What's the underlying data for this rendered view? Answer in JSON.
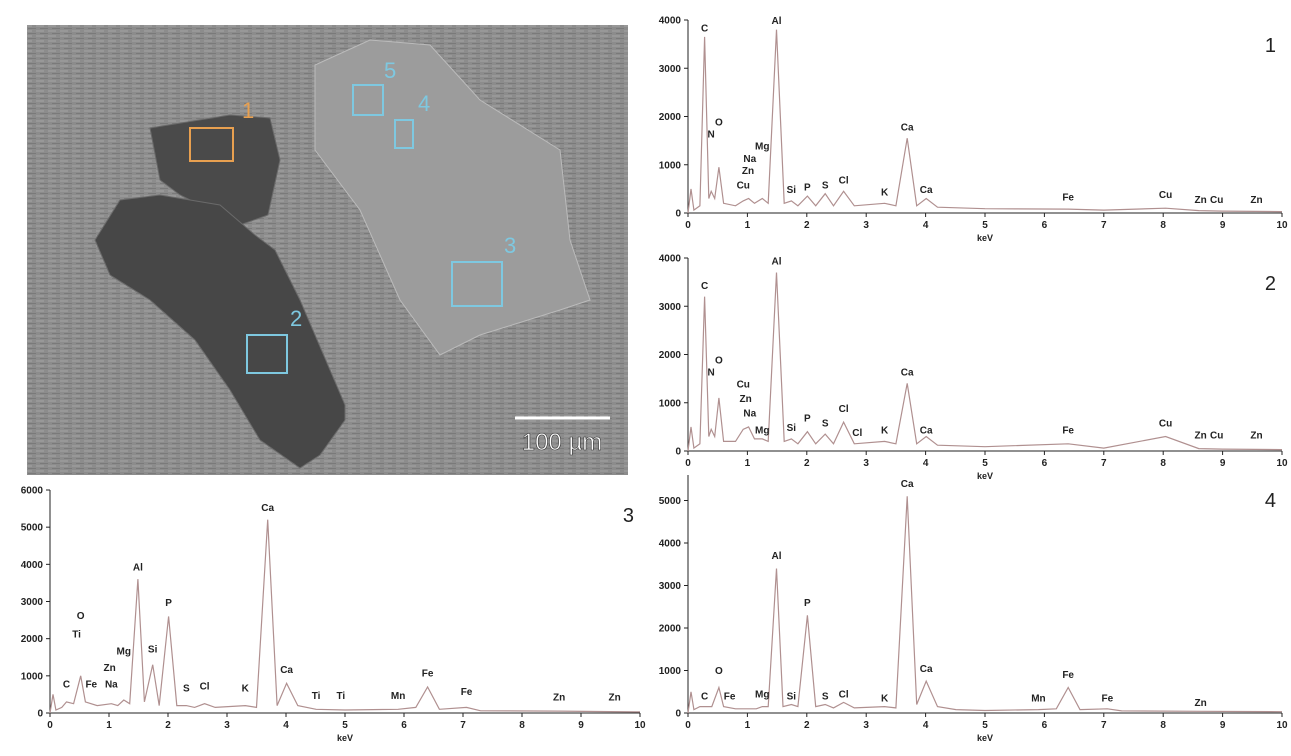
{
  "sem_image": {
    "region_labels": [
      "1",
      "2",
      "3",
      "4",
      "5"
    ],
    "scale_bar": "100 µm"
  },
  "chart_data": [
    {
      "type": "line",
      "panel": "1",
      "x_label": "keV",
      "color": "#b09090",
      "xlim": [
        0,
        10
      ],
      "ylim": [
        0,
        4000
      ],
      "xticks": [
        0,
        1,
        2,
        3,
        4,
        5,
        6,
        7,
        8,
        9,
        10
      ],
      "yticks": [
        0,
        1000,
        2000,
        3000,
        4000
      ],
      "x": [
        0,
        0.05,
        0.1,
        0.2,
        0.28,
        0.35,
        0.39,
        0.45,
        0.52,
        0.6,
        0.8,
        0.93,
        1.02,
        1.12,
        1.25,
        1.35,
        1.49,
        1.62,
        1.74,
        1.85,
        2.01,
        2.15,
        2.31,
        2.45,
        2.62,
        2.8,
        3.31,
        3.5,
        3.69,
        3.85,
        4.01,
        4.2,
        5,
        6.4,
        7,
        8.04,
        8.6,
        9,
        10
      ],
      "values": [
        0,
        500,
        60,
        150,
        3650,
        300,
        450,
        300,
        950,
        200,
        150,
        250,
        300,
        200,
        300,
        200,
        3800,
        200,
        250,
        150,
        350,
        150,
        400,
        150,
        450,
        150,
        200,
        150,
        1550,
        150,
        300,
        120,
        90,
        80,
        60,
        100,
        50,
        40,
        30
      ],
      "peaks": [
        {
          "element": "C",
          "energy": 0.28,
          "counts": 3700
        },
        {
          "element": "N",
          "energy": 0.39,
          "counts": 1500
        },
        {
          "element": "O",
          "energy": 0.52,
          "counts": 1750
        },
        {
          "element": "Na",
          "energy": 1.04,
          "counts": 1000
        },
        {
          "element": "Mg",
          "energy": 1.25,
          "counts": 1250
        },
        {
          "element": "Zn",
          "energy": 1.01,
          "counts": 750
        },
        {
          "element": "Cu",
          "energy": 0.93,
          "counts": 450
        },
        {
          "element": "Al",
          "energy": 1.49,
          "counts": 3850
        },
        {
          "element": "Si",
          "energy": 1.74,
          "counts": 350
        },
        {
          "element": "P",
          "energy": 2.01,
          "counts": 400
        },
        {
          "element": "S",
          "energy": 2.31,
          "counts": 450
        },
        {
          "element": "Cl",
          "energy": 2.62,
          "counts": 550
        },
        {
          "element": "K",
          "energy": 3.31,
          "counts": 300
        },
        {
          "element": "Ca",
          "energy": 3.69,
          "counts": 1650
        },
        {
          "element": "Ca",
          "energy": 4.01,
          "counts": 350
        },
        {
          "element": "Fe",
          "energy": 6.4,
          "counts": 200
        },
        {
          "element": "Cu",
          "energy": 8.04,
          "counts": 250
        },
        {
          "element": "Zn",
          "energy": 8.63,
          "counts": 150
        },
        {
          "element": "Cu",
          "energy": 8.9,
          "counts": 150
        },
        {
          "element": "Zn",
          "energy": 9.57,
          "counts": 150
        }
      ]
    },
    {
      "type": "line",
      "panel": "2",
      "x_label": "keV",
      "color": "#b09090",
      "xlim": [
        0,
        10
      ],
      "ylim": [
        0,
        4000
      ],
      "xticks": [
        0,
        1,
        2,
        3,
        4,
        5,
        6,
        7,
        8,
        9,
        10
      ],
      "yticks": [
        0,
        1000,
        2000,
        3000,
        4000
      ],
      "x": [
        0,
        0.05,
        0.1,
        0.2,
        0.28,
        0.35,
        0.39,
        0.45,
        0.52,
        0.6,
        0.8,
        0.93,
        1.02,
        1.12,
        1.25,
        1.35,
        1.49,
        1.62,
        1.74,
        1.85,
        2.01,
        2.15,
        2.31,
        2.45,
        2.62,
        2.8,
        3.31,
        3.5,
        3.69,
        3.85,
        4.01,
        4.2,
        5,
        6.4,
        7,
        8.04,
        8.6,
        9,
        10
      ],
      "values": [
        0,
        500,
        60,
        150,
        3200,
        300,
        450,
        300,
        1100,
        200,
        200,
        450,
        500,
        250,
        250,
        200,
        3700,
        200,
        250,
        150,
        400,
        150,
        350,
        150,
        600,
        150,
        200,
        150,
        1400,
        150,
        300,
        120,
        90,
        150,
        60,
        300,
        50,
        40,
        30
      ],
      "peaks": [
        {
          "element": "C",
          "energy": 0.28,
          "counts": 3300
        },
        {
          "element": "N",
          "energy": 0.39,
          "counts": 1500
        },
        {
          "element": "O",
          "energy": 0.52,
          "counts": 1750
        },
        {
          "element": "Cu",
          "energy": 0.93,
          "counts": 1250
        },
        {
          "element": "Zn",
          "energy": 0.97,
          "counts": 950
        },
        {
          "element": "Na",
          "energy": 1.04,
          "counts": 650
        },
        {
          "element": "Mg",
          "energy": 1.25,
          "counts": 300
        },
        {
          "element": "Al",
          "energy": 1.49,
          "counts": 3800
        },
        {
          "element": "Si",
          "energy": 1.74,
          "counts": 350
        },
        {
          "element": "P",
          "energy": 2.01,
          "counts": 550
        },
        {
          "element": "S",
          "energy": 2.31,
          "counts": 450
        },
        {
          "element": "Cl",
          "energy": 2.62,
          "counts": 750
        },
        {
          "element": "Cl",
          "energy": 2.85,
          "counts": 250
        },
        {
          "element": "K",
          "energy": 3.31,
          "counts": 300
        },
        {
          "element": "Ca",
          "energy": 3.69,
          "counts": 1500
        },
        {
          "element": "Ca",
          "energy": 4.01,
          "counts": 300
        },
        {
          "element": "Fe",
          "energy": 6.4,
          "counts": 300
        },
        {
          "element": "Cu",
          "energy": 8.04,
          "counts": 450
        },
        {
          "element": "Zn",
          "energy": 8.63,
          "counts": 200
        },
        {
          "element": "Cu",
          "energy": 8.9,
          "counts": 200
        },
        {
          "element": "Zn",
          "energy": 9.57,
          "counts": 200
        }
      ]
    },
    {
      "type": "line",
      "panel": "3",
      "x_label": "keV",
      "color": "#b09090",
      "xlim": [
        0,
        10
      ],
      "ylim": [
        0,
        6000
      ],
      "xticks": [
        0,
        1,
        2,
        3,
        4,
        5,
        6,
        7,
        8,
        9,
        10
      ],
      "yticks": [
        0,
        1000,
        2000,
        3000,
        4000,
        5000,
        6000
      ],
      "x": [
        0,
        0.05,
        0.1,
        0.2,
        0.28,
        0.4,
        0.52,
        0.6,
        0.8,
        1.04,
        1.15,
        1.25,
        1.35,
        1.49,
        1.6,
        1.74,
        1.85,
        2.01,
        2.15,
        2.31,
        2.45,
        2.62,
        2.8,
        3.31,
        3.5,
        3.69,
        3.85,
        4.01,
        4.2,
        4.51,
        5,
        5.9,
        6.2,
        6.4,
        6.6,
        7.06,
        7.3,
        8.63,
        10
      ],
      "values": [
        0,
        500,
        80,
        150,
        300,
        250,
        1000,
        300,
        200,
        250,
        200,
        350,
        250,
        3600,
        300,
        1300,
        200,
        2600,
        200,
        200,
        150,
        250,
        150,
        200,
        150,
        5200,
        200,
        800,
        200,
        100,
        80,
        100,
        150,
        700,
        100,
        150,
        60,
        50,
        30
      ],
      "peaks": [
        {
          "element": "C",
          "energy": 0.28,
          "counts": 600
        },
        {
          "element": "Ti",
          "energy": 0.45,
          "counts": 1950
        },
        {
          "element": "O",
          "energy": 0.52,
          "counts": 2450
        },
        {
          "element": "Fe",
          "energy": 0.7,
          "counts": 600
        },
        {
          "element": "Na",
          "energy": 1.04,
          "counts": 600
        },
        {
          "element": "Zn",
          "energy": 1.01,
          "counts": 1050
        },
        {
          "element": "Mg",
          "energy": 1.25,
          "counts": 1500
        },
        {
          "element": "Al",
          "energy": 1.49,
          "counts": 3750
        },
        {
          "element": "Si",
          "energy": 1.74,
          "counts": 1550
        },
        {
          "element": "P",
          "energy": 2.01,
          "counts": 2800
        },
        {
          "element": "S",
          "energy": 2.31,
          "counts": 500
        },
        {
          "element": "Cl",
          "energy": 2.62,
          "counts": 550
        },
        {
          "element": "K",
          "energy": 3.31,
          "counts": 500
        },
        {
          "element": "Ca",
          "energy": 3.69,
          "counts": 5350
        },
        {
          "element": "Ca",
          "energy": 4.01,
          "counts": 1000
        },
        {
          "element": "Ti",
          "energy": 4.51,
          "counts": 300
        },
        {
          "element": "Ti",
          "energy": 4.93,
          "counts": 300
        },
        {
          "element": "Mn",
          "energy": 5.9,
          "counts": 300
        },
        {
          "element": "Fe",
          "energy": 6.4,
          "counts": 900
        },
        {
          "element": "Fe",
          "energy": 7.06,
          "counts": 400
        },
        {
          "element": "Zn",
          "energy": 8.63,
          "counts": 250
        },
        {
          "element": "Zn",
          "energy": 9.57,
          "counts": 250
        }
      ]
    },
    {
      "type": "line",
      "panel": "4",
      "x_label": "keV",
      "color": "#b09090",
      "xlim": [
        0,
        10
      ],
      "ylim": [
        0,
        5600
      ],
      "xticks": [
        0,
        1,
        2,
        3,
        4,
        5,
        6,
        7,
        8,
        9,
        10
      ],
      "yticks": [
        0,
        1000,
        2000,
        3000,
        4000,
        5000
      ],
      "x": [
        0,
        0.05,
        0.1,
        0.2,
        0.28,
        0.4,
        0.52,
        0.6,
        0.8,
        1.04,
        1.15,
        1.25,
        1.35,
        1.49,
        1.6,
        1.74,
        1.85,
        2.01,
        2.15,
        2.31,
        2.45,
        2.62,
        2.8,
        3.31,
        3.5,
        3.69,
        3.85,
        4.01,
        4.2,
        4.51,
        5,
        5.9,
        6.2,
        6.4,
        6.6,
        7.06,
        7.3,
        8.63,
        10
      ],
      "values": [
        0,
        500,
        80,
        150,
        150,
        150,
        600,
        150,
        100,
        100,
        100,
        150,
        150,
        3400,
        150,
        200,
        150,
        2300,
        150,
        200,
        120,
        250,
        120,
        150,
        120,
        5100,
        200,
        750,
        150,
        80,
        60,
        80,
        100,
        600,
        80,
        100,
        50,
        40,
        30
      ],
      "peaks": [
        {
          "element": "C",
          "energy": 0.28,
          "counts": 250
        },
        {
          "element": "O",
          "energy": 0.52,
          "counts": 850
        },
        {
          "element": "Fe",
          "energy": 0.7,
          "counts": 250
        },
        {
          "element": "Mg",
          "energy": 1.25,
          "counts": 300
        },
        {
          "element": "Al",
          "energy": 1.49,
          "counts": 3550
        },
        {
          "element": "Si",
          "energy": 1.74,
          "counts": 250
        },
        {
          "element": "P",
          "energy": 2.01,
          "counts": 2450
        },
        {
          "element": "S",
          "energy": 2.31,
          "counts": 250
        },
        {
          "element": "Cl",
          "energy": 2.62,
          "counts": 300
        },
        {
          "element": "K",
          "energy": 3.31,
          "counts": 200
        },
        {
          "element": "Ca",
          "energy": 3.69,
          "counts": 5250
        },
        {
          "element": "Ca",
          "energy": 4.01,
          "counts": 900
        },
        {
          "element": "Mn",
          "energy": 5.9,
          "counts": 200
        },
        {
          "element": "Fe",
          "energy": 6.4,
          "counts": 750
        },
        {
          "element": "Fe",
          "energy": 7.06,
          "counts": 200
        },
        {
          "element": "Zn",
          "energy": 8.63,
          "counts": 100
        }
      ]
    }
  ]
}
